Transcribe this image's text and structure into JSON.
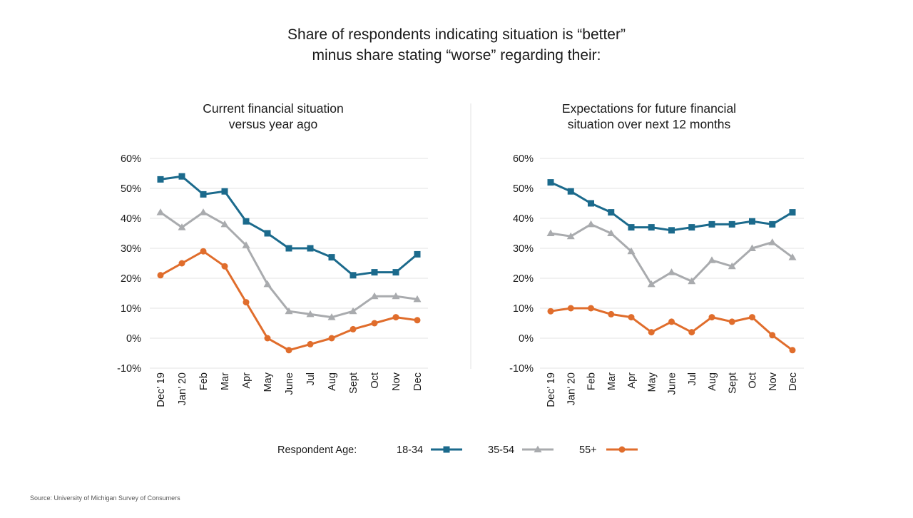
{
  "title_lines": [
    "Share of respondents indicating situation is “better”",
    "minus share stating “worse” regarding their:"
  ],
  "legend": {
    "label": "Respondent Age:",
    "items": [
      {
        "name": "18-34",
        "color": "#1b6a8c",
        "marker": "square"
      },
      {
        "name": "35-54",
        "color": "#a9abae",
        "marker": "triangle"
      },
      {
        "name": "55+",
        "color": "#e06d2c",
        "marker": "circle"
      }
    ]
  },
  "source": "Source: University of Michigan Survey of Consumers",
  "chart_data": [
    {
      "type": "line",
      "title_lines": [
        "Current financial situation",
        "versus year ago"
      ],
      "categories": [
        "Dec’ 19",
        "Jan’ 20",
        "Feb",
        "Mar",
        "Apr",
        "May",
        "June",
        "Jul",
        "Aug",
        "Sept",
        "Oct",
        "Nov",
        "Dec"
      ],
      "ylim": [
        -10,
        60
      ],
      "yticks": [
        -10,
        0,
        10,
        20,
        30,
        40,
        50,
        60
      ],
      "ytick_labels": [
        "-10%",
        "0%",
        "10%",
        "20%",
        "30%",
        "40%",
        "50%",
        "60%"
      ],
      "grid": true,
      "series": [
        {
          "name": "18-34",
          "values": [
            53,
            54,
            48,
            49,
            39,
            35,
            30,
            30,
            27,
            21,
            22,
            22,
            28
          ]
        },
        {
          "name": "35-54",
          "values": [
            42,
            37,
            42,
            38,
            31,
            18,
            9,
            8,
            7,
            9,
            14,
            14,
            13
          ]
        },
        {
          "name": "55+",
          "values": [
            21,
            25,
            29,
            24,
            12,
            0,
            -4,
            -2,
            0,
            3,
            5,
            7,
            6
          ]
        }
      ]
    },
    {
      "type": "line",
      "title_lines": [
        "Expectations for future financial",
        "situation over next 12 months"
      ],
      "categories": [
        "Dec’ 19",
        "Jan’ 20",
        "Feb",
        "Mar",
        "Apr",
        "May",
        "June",
        "Jul",
        "Aug",
        "Sept",
        "Oct",
        "Nov",
        "Dec"
      ],
      "ylim": [
        -10,
        60
      ],
      "yticks": [
        -10,
        0,
        10,
        20,
        30,
        40,
        50,
        60
      ],
      "ytick_labels": [
        "-10%",
        "0%",
        "10%",
        "20%",
        "30%",
        "40%",
        "50%",
        "60%"
      ],
      "grid": true,
      "series": [
        {
          "name": "18-34",
          "values": [
            52,
            49,
            45,
            42,
            37,
            37,
            36,
            37,
            38,
            38,
            39,
            38,
            42
          ]
        },
        {
          "name": "35-54",
          "values": [
            35,
            34,
            38,
            35,
            29,
            18,
            22,
            19,
            26,
            24,
            30,
            32,
            27
          ]
        },
        {
          "name": "55+",
          "values": [
            9,
            10,
            10,
            8,
            7,
            2,
            5.5,
            2,
            7,
            5.5,
            7,
            1,
            -4
          ]
        }
      ]
    }
  ]
}
